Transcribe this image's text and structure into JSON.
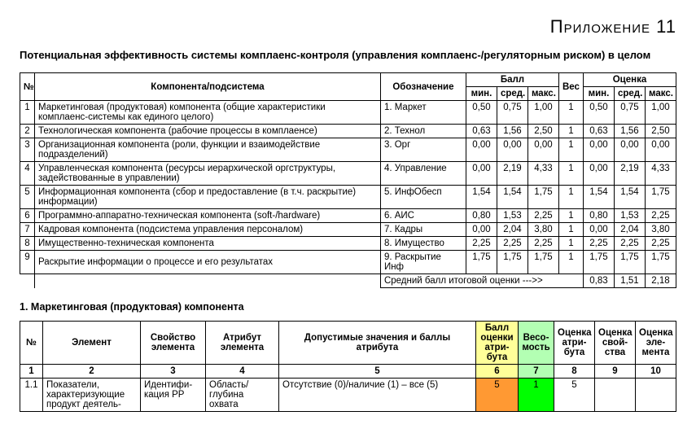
{
  "appendix_label": "Приложение 11",
  "main_title": "Потенциальная эффективность системы комплаенс-контроля (управления комплаенс-/регуляторным риском) в целом",
  "table1": {
    "headers": {
      "num": "№",
      "component": "Компонента/подсистема",
      "designation": "Обозначение",
      "score": "Балл",
      "weight": "Вес",
      "evaluation": "Оценка",
      "min": "мин.",
      "avg": "сред.",
      "max": "макс."
    },
    "rows": [
      {
        "n": "1",
        "component": "Маркетинговая (продуктовая) компонента (общие характеристики комплаенс-системы как единого целого)",
        "desig": "1. Маркет",
        "s_min": "0,50",
        "s_avg": "0,75",
        "s_max": "1,00",
        "w": "1",
        "e_min": "0,50",
        "e_avg": "0,75",
        "e_max": "1,00"
      },
      {
        "n": "2",
        "component": "Технологическая компонента (рабочие процессы в комплаенсе)",
        "desig": "2. Технол",
        "s_min": "0,63",
        "s_avg": "1,56",
        "s_max": "2,50",
        "w": "1",
        "e_min": "0,63",
        "e_avg": "1,56",
        "e_max": "2,50"
      },
      {
        "n": "3",
        "component": "Организационная компонента (роли, функции и взаимодействие подразделений)",
        "desig": "3. Орг",
        "s_min": "0,00",
        "s_avg": "0,00",
        "s_max": "0,00",
        "w": "1",
        "e_min": "0,00",
        "e_avg": "0,00",
        "e_max": "0,00"
      },
      {
        "n": "4",
        "component": "Управленческая компонента (ресурсы иерархической оргструктуры, задействованные в управлении)",
        "desig": "4. Управление",
        "s_min": "0,00",
        "s_avg": "2,19",
        "s_max": "4,33",
        "w": "1",
        "e_min": "0,00",
        "e_avg": "2,19",
        "e_max": "4,33"
      },
      {
        "n": "5",
        "component": "Информационная компонента (сбор и предоставление (в т.ч. раскры­тие) информации)",
        "desig": "5. ИнфОбесп",
        "s_min": "1,54",
        "s_avg": "1,54",
        "s_max": "1,75",
        "w": "1",
        "e_min": "1,54",
        "e_avg": "1,54",
        "e_max": "1,75"
      },
      {
        "n": "6",
        "component": "Программно-аппаратно-техническая компонента (soft-/hardware)",
        "desig": "6. АИС",
        "s_min": "0,80",
        "s_avg": "1,53",
        "s_max": "2,25",
        "w": "1",
        "e_min": "0,80",
        "e_avg": "1,53",
        "e_max": "2,25"
      },
      {
        "n": "7",
        "component": "Кадровая компонента (подсистема управления персоналом)",
        "desig": "7. Кадры",
        "s_min": "0,00",
        "s_avg": "2,04",
        "s_max": "3,80",
        "w": "1",
        "e_min": "0,00",
        "e_avg": "2,04",
        "e_max": "3,80"
      },
      {
        "n": "8",
        "component": "Имущественно-техническая компонента",
        "desig": "8. Имущество",
        "s_min": "2,25",
        "s_avg": "2,25",
        "s_max": "2,25",
        "w": "1",
        "e_min": "2,25",
        "e_avg": "2,25",
        "e_max": "2,25"
      },
      {
        "n": "9",
        "component": "Раскрытие информации о процессе и его результатах",
        "desig": "9. Раскрытие Инф",
        "s_min": "1,75",
        "s_avg": "1,75",
        "s_max": "1,75",
        "w": "1",
        "e_min": "1,75",
        "e_avg": "1,75",
        "e_max": "1,75"
      }
    ],
    "summary": {
      "label": "Средний балл итоговой оценки --->>",
      "e_min": "0,83",
      "e_avg": "1,51",
      "e_max": "2,18"
    }
  },
  "section1_title": "1. Маркетинговая (продуктовая) компонента",
  "table2": {
    "headers": {
      "num": "№",
      "element": "Элемент",
      "property": "Свойство элемента",
      "attribute": "Атрибут элемента",
      "valid": "Допустимые значения и баллы атрибута",
      "attr_score": "Балл оценки атри­бута",
      "weight": "Весо­мость",
      "eval_attr": "Оценка атри­бута",
      "eval_prop": "Оценка свой­ства",
      "eval_elem": "Оценка эле­мента"
    },
    "colnums": {
      "c1": "1",
      "c2": "2",
      "c3": "3",
      "c4": "4",
      "c5": "5",
      "c6": "6",
      "c7": "7",
      "c8": "8",
      "c9": "9",
      "c10": "10"
    },
    "row": {
      "n": "1.1",
      "element": "Показатели, характеризующие продукт деятель-",
      "property": "Идентифи­кация РР",
      "attribute": "Область/глуби­на охвата",
      "valid": "Отсутствие (0)/наличие (1) – все (5)",
      "attr_score": "5",
      "weight": "1",
      "eval_attr": "5",
      "eval_prop": "",
      "eval_elem": ""
    }
  },
  "colors": {
    "hl_yellow": "#ffff99",
    "hl_green_lt": "#b3ffb3",
    "hl_orange": "#ff9933",
    "hl_green_br": "#00ff00"
  }
}
